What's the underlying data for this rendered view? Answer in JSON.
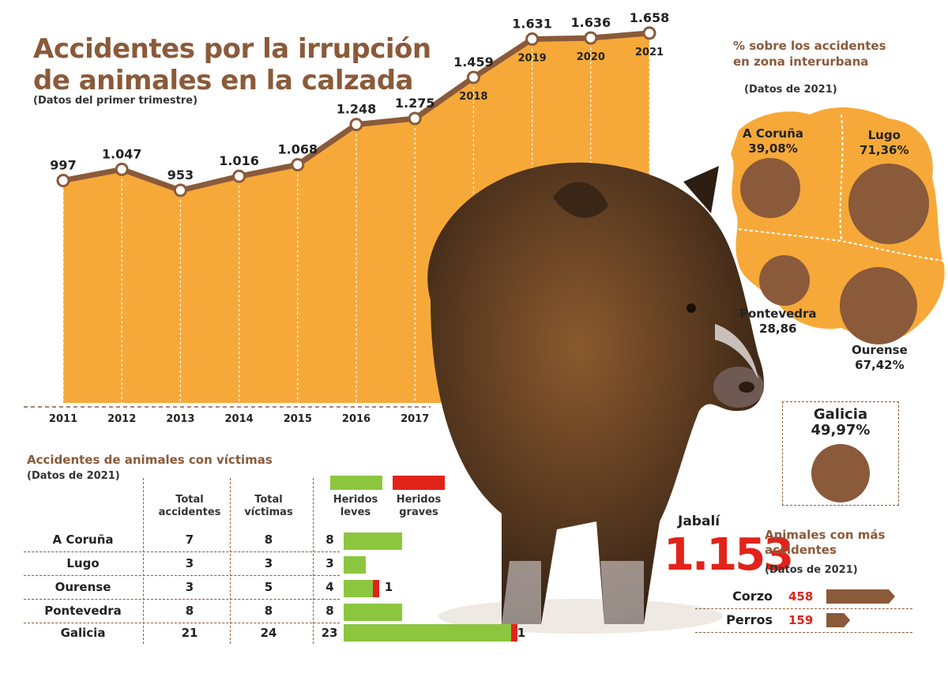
{
  "title_line1": "Accidentes por la irrupción",
  "title_line2": "de animales en la calzada",
  "subtitle": "(Datos del primer trimestre)",
  "chart_data": {
    "type": "area",
    "categories": [
      "2011",
      "2012",
      "2013",
      "2014",
      "2015",
      "2016",
      "2017",
      "2018",
      "2019",
      "2020",
      "2021"
    ],
    "values": [
      997,
      1047,
      953,
      1016,
      1068,
      1248,
      1275,
      1459,
      1631,
      1636,
      1658
    ],
    "value_labels": [
      "997",
      "1.047",
      "953",
      "1.016",
      "1.068",
      "1.248",
      "1.275",
      "1.459",
      "1.631",
      "1.636",
      "1.658"
    ],
    "ylim": [
      0,
      1700
    ],
    "colors": {
      "area": "#f6a939",
      "line": "#8a5a3a",
      "dot_fill": "#ffffff"
    }
  },
  "map": {
    "title_line1": "% sobre los accidentes",
    "title_line2": "en zona interurbana",
    "note": "(Datos de 2021)",
    "provinces": [
      {
        "name": "A Coruña",
        "value": "39,08%",
        "pct": 39.08
      },
      {
        "name": "Lugo",
        "value": "71,36%",
        "pct": 71.36
      },
      {
        "name": "Pontevedra",
        "value": "28,86",
        "pct": 28.86
      },
      {
        "name": "Ourense",
        "value": "67,42%",
        "pct": 67.42
      }
    ],
    "galicia": {
      "name": "Galicia",
      "value": "49,97%",
      "pct": 49.97
    },
    "colors": {
      "map": "#f6a939",
      "circle": "#8a5a3a"
    }
  },
  "victims_table": {
    "title": "Accidentes de animales con víctimas",
    "note": "(Datos de 2021)",
    "headers": [
      "Total accidentes",
      "Total víctimas",
      "Heridos leves",
      "Heridos graves"
    ],
    "rows": [
      {
        "name": "A Coruña",
        "accidentes": "7",
        "victimas": "8",
        "leves": "8",
        "graves": ""
      },
      {
        "name": "Lugo",
        "accidentes": "3",
        "victimas": "3",
        "leves": "3",
        "graves": ""
      },
      {
        "name": "Ourense",
        "accidentes": "3",
        "victimas": "5",
        "leves": "4",
        "graves": "1"
      },
      {
        "name": "Pontevedra",
        "accidentes": "8",
        "victimas": "8",
        "leves": "8",
        "graves": ""
      },
      {
        "name": "Galicia",
        "accidentes": "21",
        "victimas": "24",
        "leves": "23",
        "graves": "1"
      }
    ],
    "leves_values": [
      8,
      3,
      4,
      8,
      23
    ],
    "graves_values": [
      0,
      0,
      1,
      0,
      1
    ],
    "colors": {
      "leves": "#8cc63f",
      "graves": "#e2231a"
    }
  },
  "animals": {
    "jabali_label": "Jabalí",
    "jabali_value": "1.153",
    "title_line1": "Animales con más",
    "title_line2": "accidentes",
    "note": "(Datos de 2021)",
    "items": [
      {
        "name": "Corzo",
        "value": "458",
        "num": 458
      },
      {
        "name": "Perros",
        "value": "159",
        "num": 159
      }
    ]
  }
}
